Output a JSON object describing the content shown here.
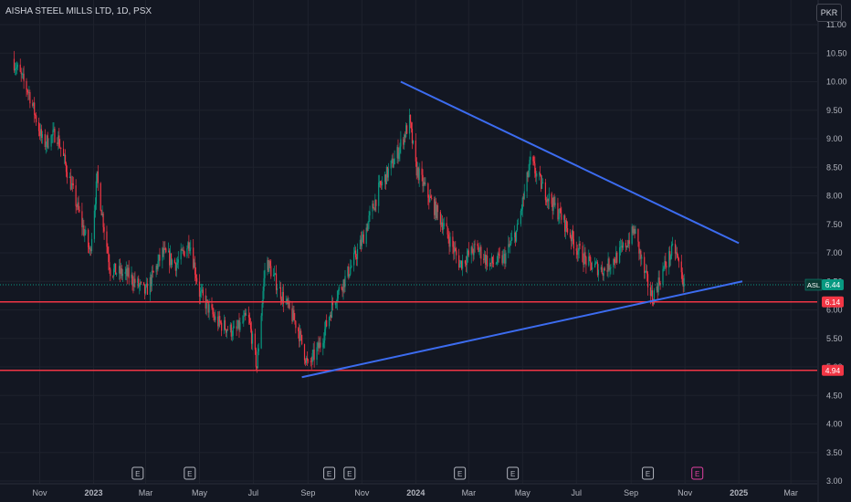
{
  "chart_data": {
    "type": "candlestick",
    "title": "AISHA STEEL MILLS LTD, 1D, PSX",
    "currency": "PKR",
    "ylim": [
      3.0,
      11.0
    ],
    "yticks": [
      3.0,
      3.5,
      4.0,
      4.5,
      5.0,
      5.5,
      6.0,
      6.5,
      7.0,
      7.5,
      8.0,
      8.5,
      9.0,
      9.5,
      10.0,
      10.5,
      11.0
    ],
    "xticks": [
      "Nov",
      "2023",
      "Mar",
      "May",
      "Jul",
      "Sep",
      "Nov",
      "2024",
      "Mar",
      "May",
      "Jul",
      "Sep",
      "Nov",
      "2025",
      "Mar"
    ],
    "xtick_bold": [
      "2023",
      "2024",
      "2025"
    ],
    "price_path": [
      [
        "2022-10-01",
        10.4
      ],
      [
        "2022-10-20",
        9.8
      ],
      [
        "2022-11-05",
        8.9
      ],
      [
        "2022-11-20",
        9.1
      ],
      [
        "2022-12-10",
        8.0
      ],
      [
        "2022-12-28",
        7.0
      ],
      [
        "2023-01-05",
        8.3
      ],
      [
        "2023-01-20",
        6.7
      ],
      [
        "2023-02-10",
        6.6
      ],
      [
        "2023-03-01",
        6.3
      ],
      [
        "2023-03-20",
        7.0
      ],
      [
        "2023-04-05",
        6.8
      ],
      [
        "2023-04-20",
        7.2
      ],
      [
        "2023-05-01",
        6.3
      ],
      [
        "2023-05-20",
        5.8
      ],
      [
        "2023-06-10",
        5.6
      ],
      [
        "2023-06-25",
        5.9
      ],
      [
        "2023-07-05",
        5.0
      ],
      [
        "2023-07-15",
        6.9
      ],
      [
        "2023-08-01",
        6.3
      ],
      [
        "2023-08-20",
        5.7
      ],
      [
        "2023-09-01",
        5.0
      ],
      [
        "2023-09-15",
        5.4
      ],
      [
        "2023-10-01",
        6.2
      ],
      [
        "2023-10-15",
        6.6
      ],
      [
        "2023-11-01",
        7.2
      ],
      [
        "2023-11-20",
        8.1
      ],
      [
        "2023-12-10",
        8.7
      ],
      [
        "2023-12-25",
        9.3
      ],
      [
        "2024-01-01",
        8.5
      ],
      [
        "2024-01-15",
        8.0
      ],
      [
        "2024-02-01",
        7.5
      ],
      [
        "2024-02-20",
        6.8
      ],
      [
        "2024-03-10",
        7.1
      ],
      [
        "2024-03-25",
        6.8
      ],
      [
        "2024-04-10",
        6.9
      ],
      [
        "2024-04-25",
        7.4
      ],
      [
        "2024-05-10",
        8.6
      ],
      [
        "2024-05-25",
        8.1
      ],
      [
        "2024-06-15",
        7.6
      ],
      [
        "2024-07-01",
        7.1
      ],
      [
        "2024-07-15",
        6.8
      ],
      [
        "2024-08-01",
        6.7
      ],
      [
        "2024-08-20",
        7.0
      ],
      [
        "2024-09-05",
        7.4
      ],
      [
        "2024-09-15",
        6.7
      ],
      [
        "2024-09-25",
        6.2
      ],
      [
        "2024-10-10",
        6.8
      ],
      [
        "2024-10-20",
        7.1
      ],
      [
        "2024-10-31",
        6.44
      ]
    ],
    "trendlines": [
      {
        "name": "upper-resistance",
        "color": "#3c6cf0",
        "from": [
          "2023-12-15",
          10.0
        ],
        "to": [
          "2025-01-01",
          7.17
        ]
      },
      {
        "name": "lower-support",
        "color": "#3c6cf0",
        "from": [
          "2023-08-25",
          4.82
        ],
        "to": [
          "2025-01-05",
          6.5
        ]
      }
    ],
    "horizontal_lines": [
      {
        "value": 6.14,
        "label": "6.14",
        "color": "#f23645"
      },
      {
        "value": 4.94,
        "label": "4.94",
        "color": "#f23645"
      }
    ],
    "last_price": {
      "symbol": "ASL",
      "value": 6.44,
      "label": "6.44",
      "color": "#089981"
    },
    "earnings_markers": [
      {
        "date": "2023-02-20",
        "label": "E",
        "color": "#b2b5be"
      },
      {
        "date": "2023-04-20",
        "label": "E",
        "color": "#b2b5be"
      },
      {
        "date": "2023-09-25",
        "label": "E",
        "color": "#b2b5be"
      },
      {
        "date": "2023-10-18",
        "label": "E",
        "color": "#b2b5be"
      },
      {
        "date": "2024-02-20",
        "label": "E",
        "color": "#b2b5be"
      },
      {
        "date": "2024-04-20",
        "label": "E",
        "color": "#b2b5be"
      },
      {
        "date": "2024-09-20",
        "label": "E",
        "color": "#b2b5be"
      },
      {
        "date": "2024-11-15",
        "label": "E",
        "color": "#e040a0"
      }
    ],
    "colors": {
      "up": "#089981",
      "down": "#f23645",
      "background": "#131722",
      "grid": "#1e222d",
      "axis_text": "#b2b5be"
    }
  }
}
